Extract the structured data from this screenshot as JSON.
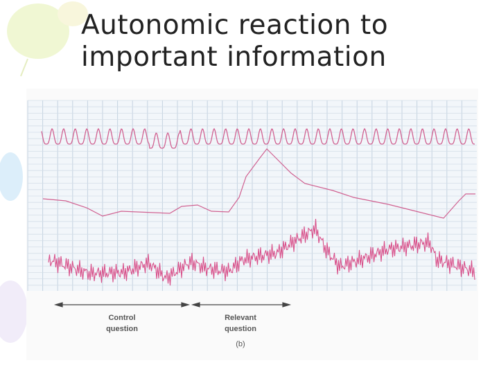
{
  "slide": {
    "title": "Autonomic reaction to important information",
    "figure": {
      "control_label": "Control question",
      "relevant_label": "Relevant question",
      "panel_label": "(b)"
    }
  }
}
